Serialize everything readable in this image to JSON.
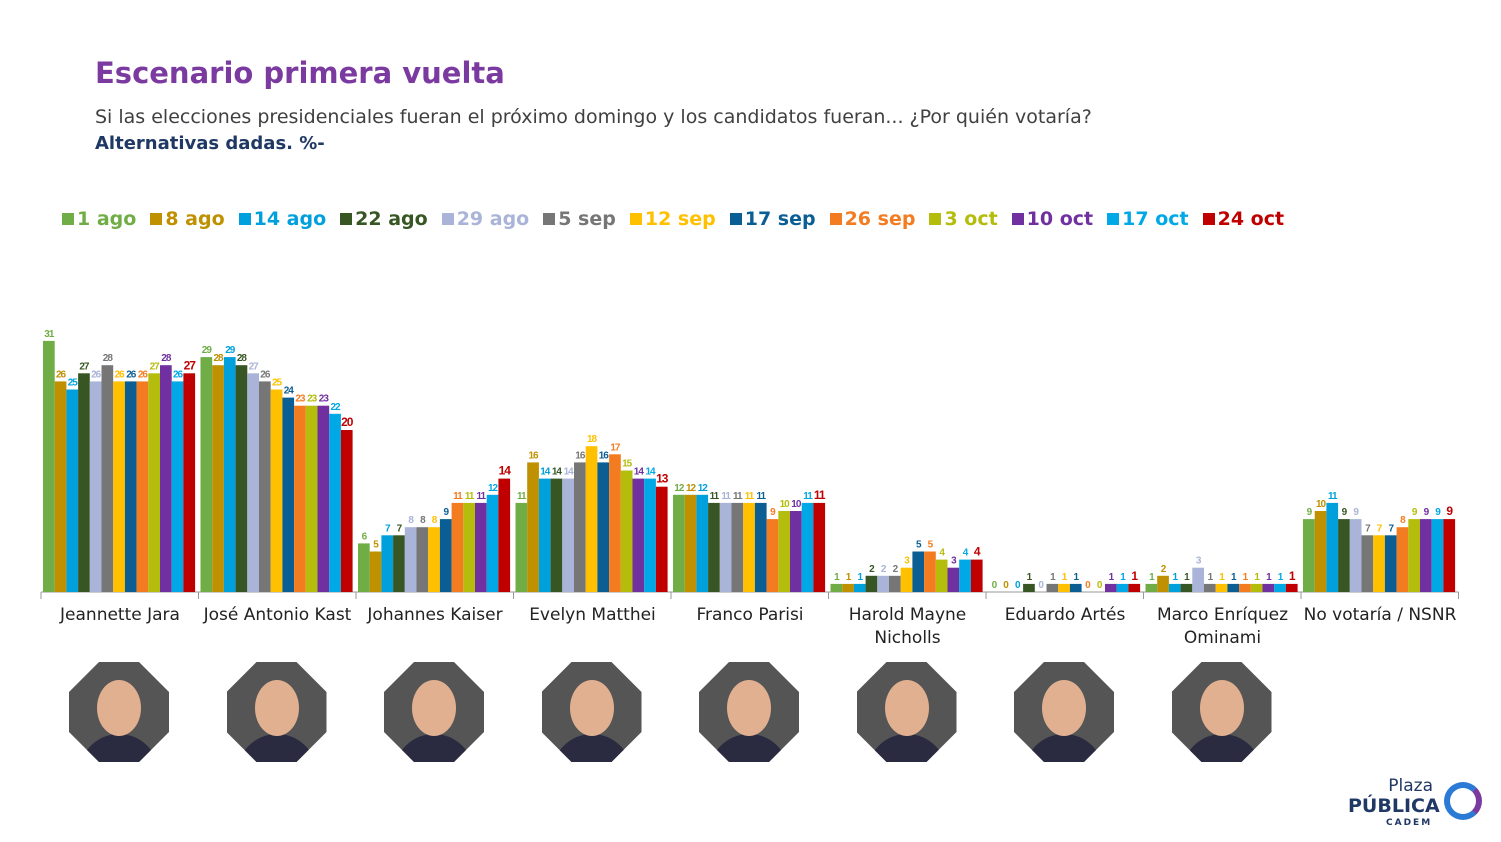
{
  "header": {
    "title": "Escenario primera vuelta",
    "subtitle": "Si las elecciones presidenciales fueran el próximo domingo y los candidatos fueran... ¿Por quién votaría?",
    "note": "Alternativas dadas. %-"
  },
  "chart_data": {
    "type": "bar",
    "title": "Escenario primera vuelta",
    "ylabel": "%",
    "ylim": [
      0,
      32
    ],
    "grid": false,
    "legend": "top",
    "categories": [
      "Jeannette Jara",
      "José Antonio Kast",
      "Johannes Kaiser",
      "Evelyn Matthei",
      "Franco Parisi",
      "Harold Mayne Nicholls",
      "Eduardo Artés",
      "Marco Enríquez Ominami",
      "No votaría / NSNR"
    ],
    "series": [
      {
        "name": "1 ago",
        "color": "#70ad47",
        "values": [
          31,
          29,
          6,
          11,
          12,
          1,
          0,
          1,
          9
        ]
      },
      {
        "name": "8 ago",
        "color": "#bf9000",
        "values": [
          26,
          28,
          5,
          16,
          12,
          1,
          0,
          2,
          10
        ]
      },
      {
        "name": "14 ago",
        "color": "#00a0dc",
        "values": [
          25,
          29,
          7,
          14,
          12,
          1,
          0,
          1,
          11
        ]
      },
      {
        "name": "22 ago",
        "color": "#375623",
        "values": [
          27,
          28,
          7,
          14,
          11,
          2,
          1,
          1,
          9
        ]
      },
      {
        "name": "29 ago",
        "color": "#a9b4d8",
        "values": [
          26,
          27,
          8,
          14,
          11,
          2,
          0,
          3,
          9
        ]
      },
      {
        "name": "5 sep",
        "color": "#767676",
        "values": [
          28,
          26,
          8,
          16,
          11,
          2,
          1,
          1,
          7
        ]
      },
      {
        "name": "12 sep",
        "color": "#ffc000",
        "values": [
          26,
          25,
          8,
          18,
          11,
          3,
          1,
          1,
          7
        ]
      },
      {
        "name": "17 sep",
        "color": "#0b5e94",
        "values": [
          26,
          24,
          9,
          16,
          11,
          5,
          1,
          1,
          7
        ]
      },
      {
        "name": "26 sep",
        "color": "#f47c20",
        "values": [
          26,
          23,
          11,
          17,
          9,
          5,
          0,
          1,
          8
        ]
      },
      {
        "name": "3 oct",
        "color": "#b4bd0c",
        "values": [
          27,
          23,
          11,
          15,
          10,
          4,
          0,
          1,
          9
        ]
      },
      {
        "name": "10 oct",
        "color": "#7030a0",
        "values": [
          28,
          23,
          11,
          14,
          10,
          3,
          1,
          1,
          9
        ]
      },
      {
        "name": "17 oct",
        "color": "#00a8e6",
        "values": [
          26,
          22,
          12,
          14,
          11,
          4,
          1,
          1,
          9
        ]
      },
      {
        "name": "24 oct",
        "color": "#c00000",
        "values": [
          27,
          20,
          14,
          13,
          11,
          4,
          1,
          1,
          9
        ]
      }
    ]
  },
  "candidates": [
    "Jeannette Jara",
    "José Antonio Kast",
    "Johannes Kaiser",
    "Evelyn Matthei",
    "Franco Parisi",
    "Harold Mayne Nicholls",
    "Eduardo Artés",
    "Marco Enríquez Ominami",
    "No votaría / NSNR"
  ],
  "logo": {
    "line1": "Plaza",
    "line2": "PÚBLICA",
    "line3": "CADEM"
  }
}
